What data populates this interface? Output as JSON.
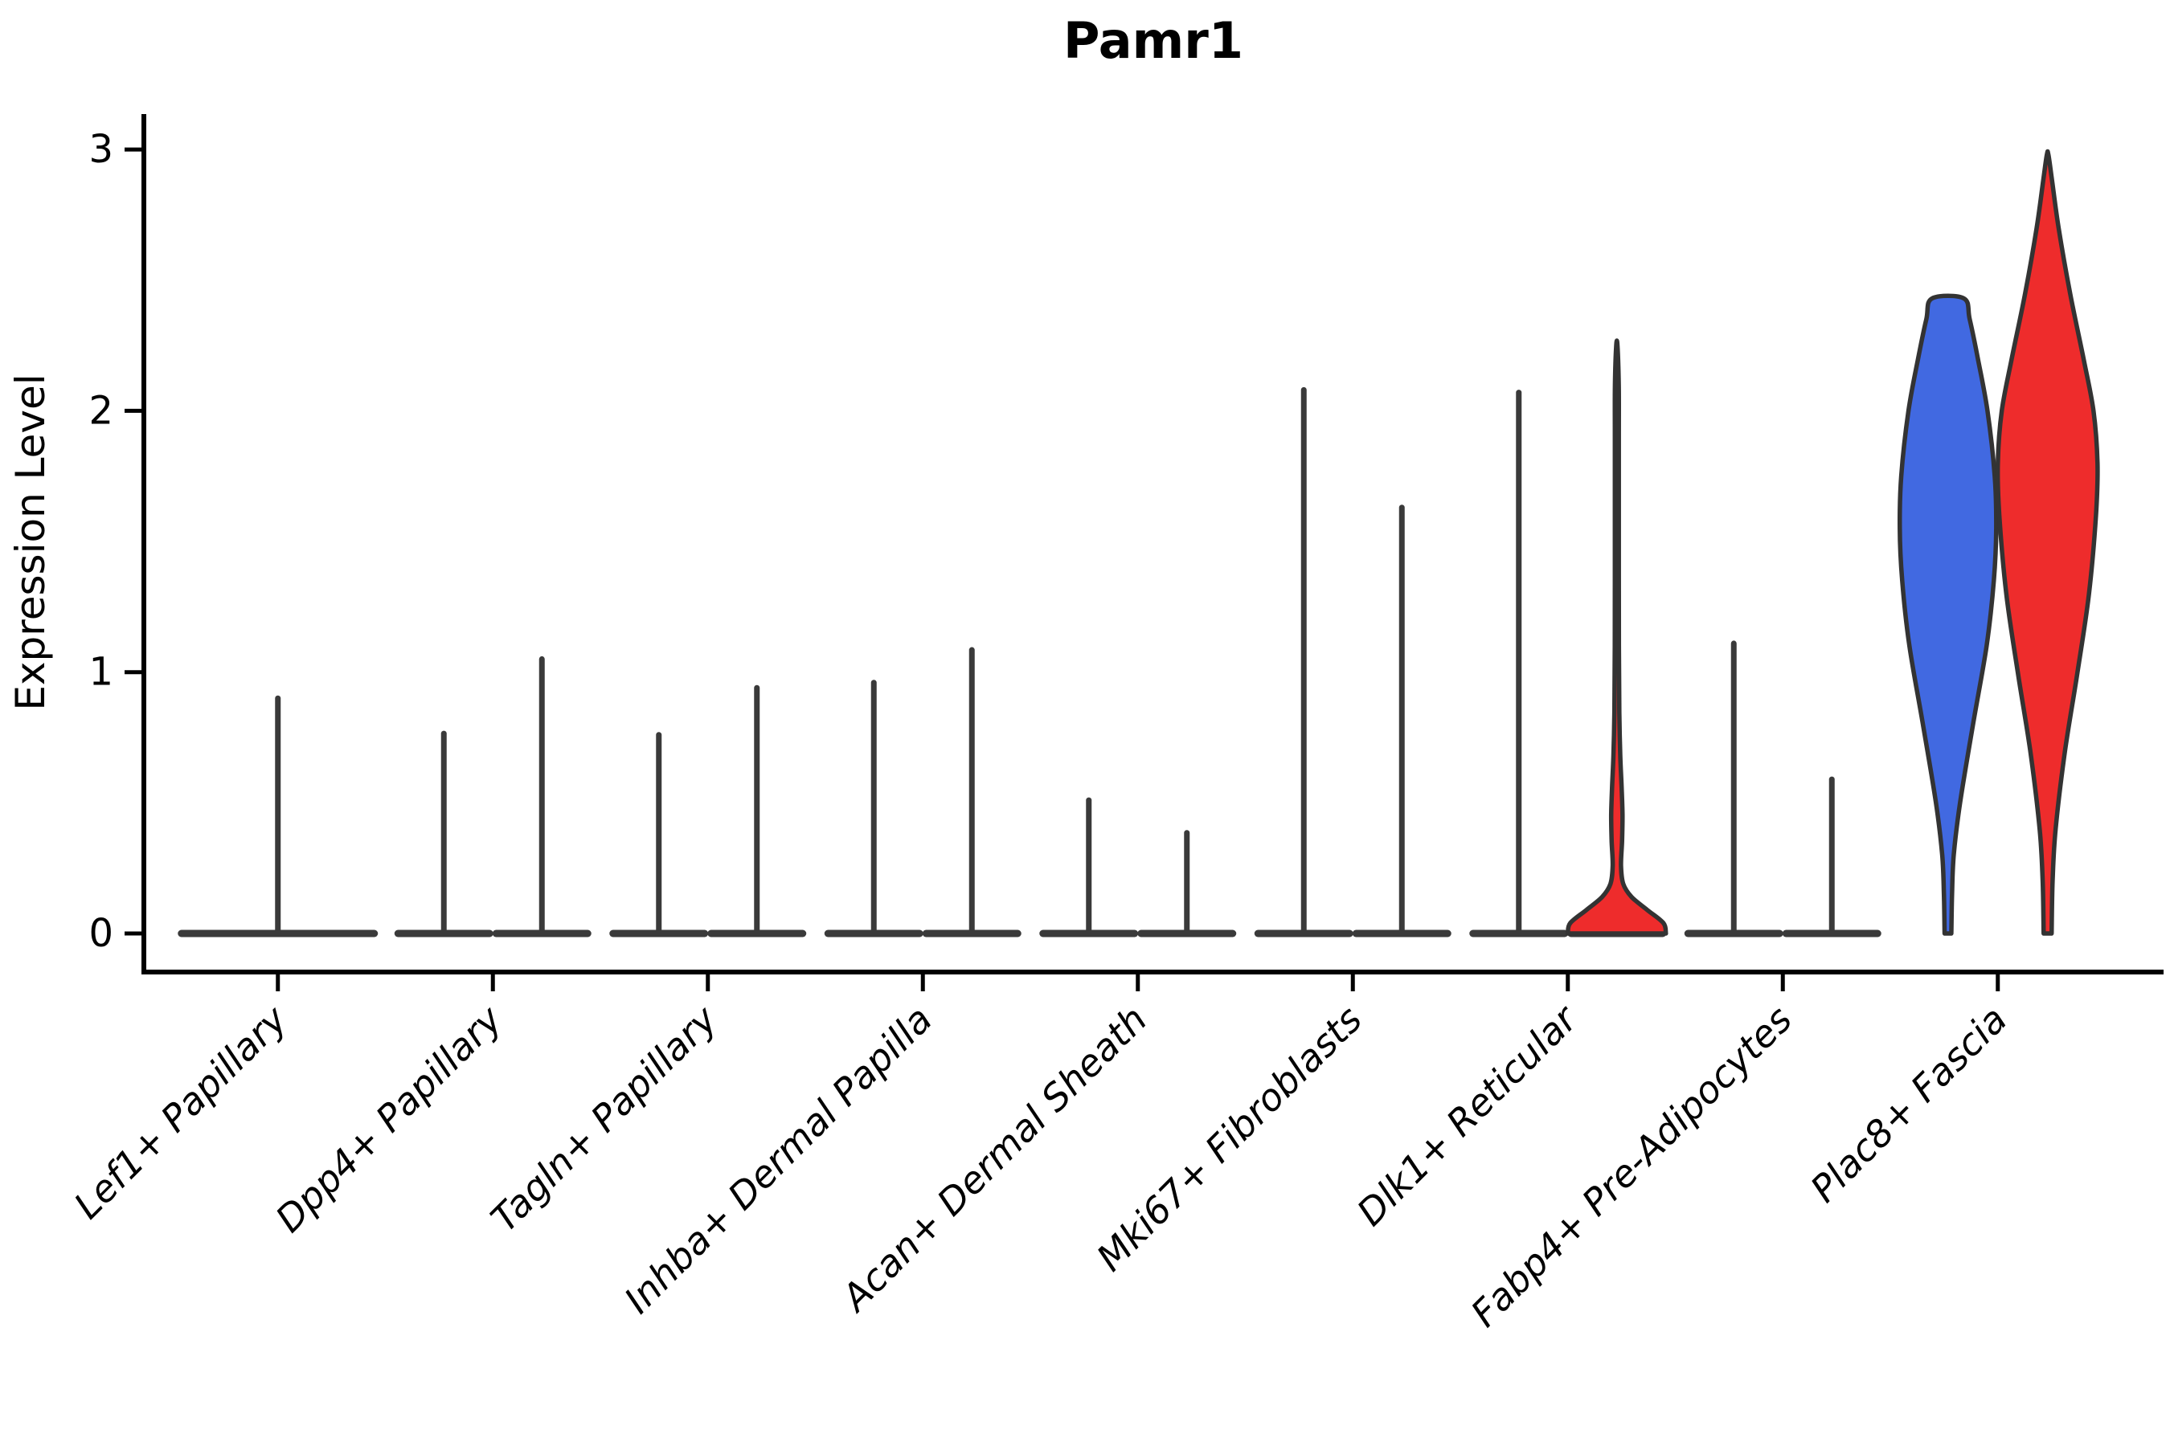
{
  "chart_data": {
    "type": "violin",
    "title": "Pamr1",
    "ylabel": "Expression Level",
    "xlabel": "",
    "ylim": [
      0,
      3
    ],
    "yticks": [
      "0",
      "1",
      "2",
      "3"
    ],
    "grid": false,
    "legend_position": "none",
    "group_colors": {
      "blue": "#4169E1",
      "red": "#EE2C2C"
    },
    "outline_color": "#333333",
    "spike_color": "#3a3a3a",
    "categories": [
      {
        "label": "Lef1+ Papillary",
        "violins": [
          {
            "group": "blue",
            "kind": "spike",
            "max": 0.9,
            "offset": 0,
            "halfwidth": 124
          }
        ]
      },
      {
        "label": "Dpp4+ Papillary",
        "violins": [
          {
            "group": "blue",
            "kind": "spike",
            "max": 0.765,
            "offset": -61
          },
          {
            "group": "red",
            "kind": "spike",
            "max": 1.05,
            "offset": 61
          }
        ]
      },
      {
        "label": "Tagln+ Papillary",
        "violins": [
          {
            "group": "blue",
            "kind": "spike",
            "max": 0.76,
            "offset": -61
          },
          {
            "group": "red",
            "kind": "spike",
            "max": 0.94,
            "offset": 61
          }
        ]
      },
      {
        "label": "Inhba+ Dermal Papilla",
        "violins": [
          {
            "group": "blue",
            "kind": "spike",
            "max": 0.96,
            "offset": -61
          },
          {
            "group": "red",
            "kind": "spike",
            "max": 1.085,
            "offset": 61
          }
        ]
      },
      {
        "label": "Acan+ Dermal Sheath",
        "violins": [
          {
            "group": "blue",
            "kind": "spike",
            "max": 0.51,
            "offset": -61
          },
          {
            "group": "red",
            "kind": "spike",
            "max": 0.385,
            "offset": 61
          }
        ]
      },
      {
        "label": "Mki67+ Fibroblasts",
        "violins": [
          {
            "group": "blue",
            "kind": "spike",
            "max": 2.08,
            "offset": -61
          },
          {
            "group": "red",
            "kind": "spike",
            "max": 1.63,
            "offset": 61
          }
        ]
      },
      {
        "label": "Dlk1+ Reticular",
        "violins": [
          {
            "group": "blue",
            "kind": "spike",
            "max": 2.07,
            "offset": -61
          },
          {
            "group": "red",
            "kind": "shape",
            "max": 2.25,
            "offset": 61,
            "halfwidth": 61,
            "base_line": true,
            "profile": [
              [
                0,
                1.0
              ],
              [
                0.04,
                0.95
              ],
              [
                0.09,
                0.62
              ],
              [
                0.14,
                0.3
              ],
              [
                0.19,
                0.13
              ],
              [
                0.26,
                0.085
              ],
              [
                0.35,
                0.105
              ],
              [
                0.45,
                0.115
              ],
              [
                0.55,
                0.1
              ],
              [
                0.68,
                0.07
              ],
              [
                0.85,
                0.05
              ],
              [
                1.1,
                0.042
              ],
              [
                1.5,
                0.04
              ],
              [
                1.9,
                0.04
              ],
              [
                2.1,
                0.038
              ],
              [
                2.25,
                0.012
              ]
            ]
          }
        ]
      },
      {
        "label": "Fabp4+ Pre-Adipocytes",
        "violins": [
          {
            "group": "blue",
            "kind": "spike",
            "max": 1.11,
            "offset": -61
          },
          {
            "group": "red",
            "kind": "spike",
            "max": 0.59,
            "offset": 61
          }
        ]
      },
      {
        "label": "Plac8+ Fascia",
        "violins": [
          {
            "group": "blue",
            "kind": "shape",
            "max": 2.43,
            "offset": -62,
            "halfwidth": 60,
            "flat_top": true,
            "profile": [
              [
                0,
                0.07
              ],
              [
                0.15,
                0.085
              ],
              [
                0.3,
                0.12
              ],
              [
                0.5,
                0.25
              ],
              [
                0.8,
                0.52
              ],
              [
                1.1,
                0.8
              ],
              [
                1.35,
                0.95
              ],
              [
                1.55,
                1.0
              ],
              [
                1.75,
                0.97
              ],
              [
                2.0,
                0.82
              ],
              [
                2.2,
                0.62
              ],
              [
                2.35,
                0.45
              ],
              [
                2.43,
                0.33
              ]
            ]
          },
          {
            "group": "red",
            "kind": "shape",
            "max": 2.98,
            "offset": 62,
            "halfwidth": 62,
            "profile": [
              [
                0,
                0.08
              ],
              [
                0.2,
                0.1
              ],
              [
                0.4,
                0.16
              ],
              [
                0.7,
                0.35
              ],
              [
                1.0,
                0.6
              ],
              [
                1.3,
                0.83
              ],
              [
                1.6,
                0.97
              ],
              [
                1.8,
                1.0
              ],
              [
                2.0,
                0.92
              ],
              [
                2.2,
                0.72
              ],
              [
                2.45,
                0.45
              ],
              [
                2.7,
                0.22
              ],
              [
                2.88,
                0.09
              ],
              [
                2.98,
                0.015
              ]
            ]
          }
        ]
      }
    ]
  }
}
